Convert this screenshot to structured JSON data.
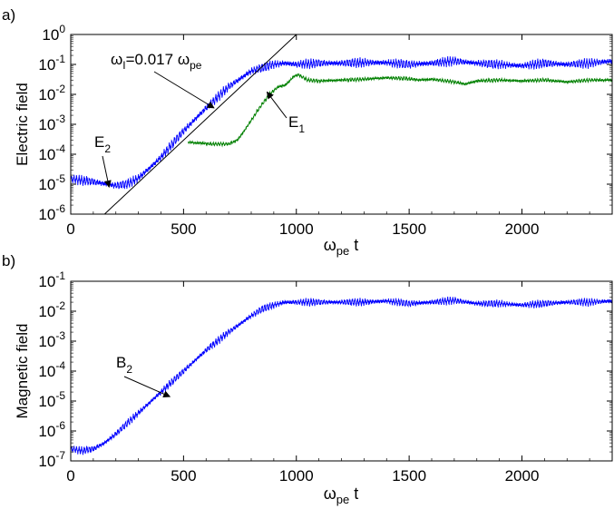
{
  "figure": {
    "panel_a_label": "a)",
    "panel_b_label": "b)"
  },
  "chart_data": [
    {
      "id": "panel-a",
      "type": "line",
      "yscale": "log",
      "xlim": [
        0,
        2400
      ],
      "ylim": [
        1e-06,
        1
      ],
      "xticks": [
        0,
        500,
        1000,
        1500,
        2000
      ],
      "xticklabels": [
        "0",
        "500",
        "1000",
        "1500",
        "2000"
      ],
      "yticks": [
        1e-06,
        1e-05,
        0.0001,
        0.001,
        0.01,
        0.1,
        1
      ],
      "ytick_exponents": [
        "-6",
        "-5",
        "-4",
        "-3",
        "-2",
        "-1",
        "0"
      ],
      "tick_base": "10",
      "ylabel": "Electric field",
      "xlabel": {
        "main": "ω",
        "sub": "pe",
        "suffix": " t"
      },
      "series": [
        {
          "name": "E_2",
          "color": "#0000ff",
          "oscillation_decades": 0.25,
          "x": [
            0,
            100,
            200,
            250,
            300,
            350,
            400,
            500,
            600,
            700,
            800,
            900,
            950,
            1000,
            1100,
            1200,
            1300,
            1400,
            1500,
            1600,
            1700,
            1800,
            1900,
            2000,
            2100,
            2200,
            2300,
            2400
          ],
          "y": [
            1.5e-05,
            1.2e-05,
            9e-06,
            1e-05,
            1.6e-05,
            3.5e-05,
            8e-05,
            0.0006,
            0.0035,
            0.018,
            0.06,
            0.1,
            0.11,
            0.1,
            0.11,
            0.11,
            0.115,
            0.115,
            0.1,
            0.11,
            0.13,
            0.11,
            0.1,
            0.09,
            0.11,
            0.1,
            0.11,
            0.13
          ]
        },
        {
          "name": "E_1",
          "color": "#008000",
          "oscillation_decades": 0.1,
          "x": [
            520,
            560,
            620,
            700,
            740,
            780,
            830,
            880,
            920,
            950,
            990,
            1010,
            1050,
            1100,
            1200,
            1300,
            1400,
            1500,
            1550,
            1600,
            1700,
            1750,
            1800,
            1900,
            2000,
            2100,
            2200,
            2300,
            2400
          ],
          "y": [
            0.00025,
            0.00024,
            0.00022,
            0.00022,
            0.0003,
            0.0008,
            0.003,
            0.01,
            0.018,
            0.02,
            0.04,
            0.045,
            0.03,
            0.028,
            0.03,
            0.032,
            0.036,
            0.033,
            0.03,
            0.032,
            0.026,
            0.022,
            0.028,
            0.03,
            0.028,
            0.03,
            0.026,
            0.03,
            0.03
          ]
        },
        {
          "name": "fit",
          "color": "#000000",
          "oscillation_decades": 0,
          "x": [
            150,
            1000
          ],
          "y": [
            1e-06,
            1
          ]
        }
      ],
      "annotations": [
        {
          "id": "growth-rate",
          "omega": "ω",
          "sub1": "I",
          "mid": "=0.017 ",
          "omega2": "ω",
          "sub2": "pe",
          "arrow_to": [
            635,
            0.0035
          ]
        },
        {
          "id": "E2",
          "main": "E",
          "sub": "2",
          "arrow_to": [
            170,
            8e-06
          ]
        },
        {
          "id": "E1",
          "main": "E",
          "sub": "1",
          "arrow_to": [
            870,
            0.012
          ]
        }
      ]
    },
    {
      "id": "panel-b",
      "type": "line",
      "yscale": "log",
      "xlim": [
        0,
        2400
      ],
      "ylim": [
        1e-07,
        0.1
      ],
      "xticks": [
        0,
        500,
        1000,
        1500,
        2000
      ],
      "xticklabels": [
        "0",
        "500",
        "1000",
        "1500",
        "2000"
      ],
      "yticks": [
        1e-07,
        1e-06,
        1e-05,
        0.0001,
        0.001,
        0.01,
        0.1
      ],
      "ytick_exponents": [
        "-7",
        "-6",
        "-5",
        "-4",
        "-3",
        "-2",
        "-1"
      ],
      "tick_base": "10",
      "ylabel": "Magnetic field",
      "xlabel": {
        "main": "ω",
        "sub": "pe",
        "suffix": " t"
      },
      "series": [
        {
          "name": "B_2",
          "color": "#0000ff",
          "oscillation_decades": 0.2,
          "x": [
            0,
            50,
            100,
            150,
            200,
            300,
            400,
            500,
            600,
            700,
            800,
            850,
            900,
            950,
            1000,
            1100,
            1200,
            1300,
            1400,
            1500,
            1600,
            1700,
            1800,
            1900,
            2000,
            2100,
            2200,
            2300,
            2400
          ],
          "y": [
            2.5e-07,
            2.2e-07,
            2.5e-07,
            4e-07,
            8e-07,
            4e-06,
            2e-05,
            0.0001,
            0.0005,
            0.002,
            0.007,
            0.012,
            0.016,
            0.02,
            0.02,
            0.02,
            0.02,
            0.02,
            0.022,
            0.018,
            0.02,
            0.023,
            0.018,
            0.018,
            0.016,
            0.018,
            0.02,
            0.02,
            0.022
          ]
        }
      ],
      "annotations": [
        {
          "id": "B2",
          "main": "B",
          "sub": "2",
          "arrow_to": [
            440,
            1.4e-05
          ]
        }
      ]
    }
  ]
}
